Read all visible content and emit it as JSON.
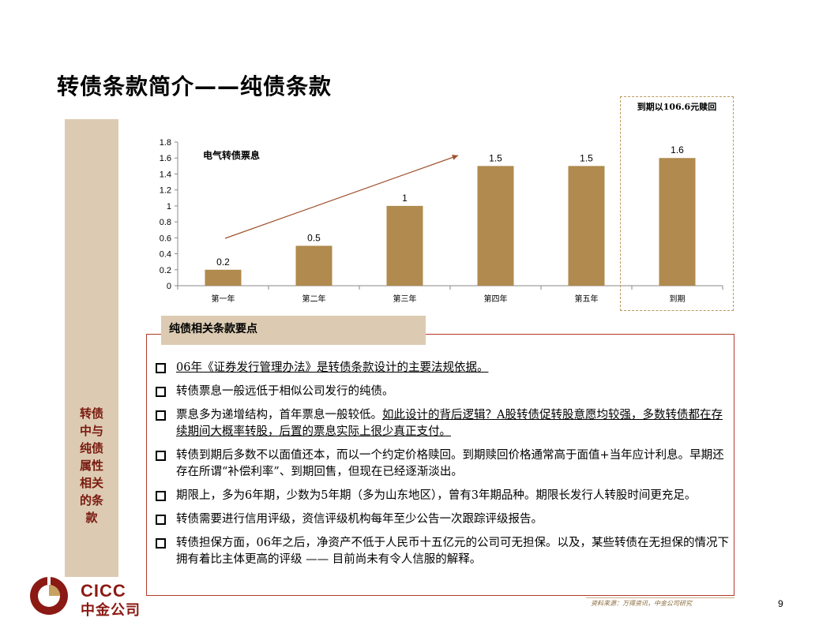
{
  "page": {
    "title": "转债条款简介——纯债条款",
    "page_number": "9",
    "source": "资料来源：万得资讯，中金公司研究"
  },
  "sidebar": {
    "lines": [
      "转债",
      "中与",
      "纯债",
      "属性",
      "相关",
      "的条",
      "款"
    ]
  },
  "logo": {
    "latin": "CICC",
    "chinese": "中金公司"
  },
  "chart_data": {
    "type": "bar",
    "categories": [
      "第一年",
      "第二年",
      "第三年",
      "第四年",
      "第五年",
      "到期"
    ],
    "values": [
      0.2,
      0.5,
      1,
      1.5,
      1.5,
      1.6
    ],
    "data_labels": [
      "0.2",
      "0.5",
      "1",
      "1.5",
      "1.5",
      "1.6"
    ],
    "title": "电气转债票息",
    "ylim": [
      0,
      1.8
    ],
    "yticks": [
      "0",
      "0.2",
      "0.4",
      "0.6",
      "0.8",
      "1",
      "1.2",
      "1.4",
      "1.6",
      "1.8"
    ],
    "bar_color": "#b08a4e",
    "arrow_color": "#a0522d",
    "annotation": "到期以106.6元赎回"
  },
  "section": {
    "header": "纯债相关条款要点",
    "bullets": [
      {
        "parts": [
          {
            "text": "06年《证券发行管理办法》是转债条款设计的主要法规依据。",
            "u": true
          }
        ]
      },
      {
        "parts": [
          {
            "text": "转债票息一般远低于相似公司发行的纯债。",
            "u": false
          }
        ]
      },
      {
        "parts": [
          {
            "text": "票息多为递增结构，首年票息一般较低。",
            "u": false
          },
          {
            "text": "如此设计的背后逻辑？A股转债促转股意愿均较强，多数转债都在存续期间大概率转股，后置的票息实际上很少真正支付。",
            "u": true
          }
        ]
      },
      {
        "parts": [
          {
            "text": "转债到期后多数不以面值还本，而以一个约定价格赎回。到期赎回价格通常高于面值+当年应计利息。早期还存在所谓“补偿利率”、到期回售，但现在已经逐渐淡出。",
            "u": false
          }
        ]
      },
      {
        "parts": [
          {
            "text": "期限上，多为6年期，少数为5年期（多为山东地区），曾有3年期品种。期限长发行人转股时间更充足。",
            "u": false
          }
        ]
      },
      {
        "parts": [
          {
            "text": "转债需要进行信用评级，资信评级机构每年至少公告一次跟踪评级报告。",
            "u": false
          }
        ]
      },
      {
        "parts": [
          {
            "text": "转债担保方面，06年之后，净资产不低于人民币十五亿元的公司可无担保。以及，某些转债在无担保的情况下拥有着比主体更高的评级 —— 目前尚未有令人信服的解释。",
            "u": false
          }
        ]
      }
    ]
  }
}
